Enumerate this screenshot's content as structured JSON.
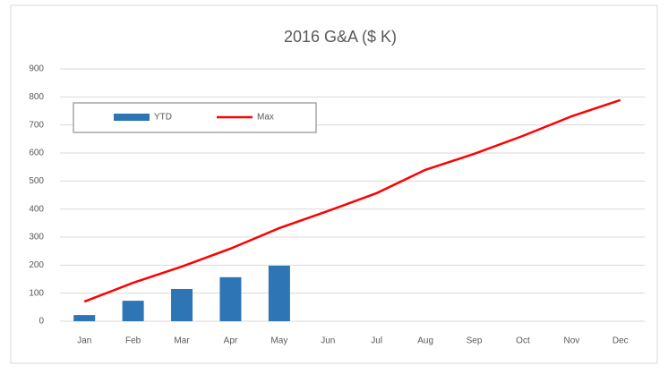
{
  "chart_data": {
    "type": "bar",
    "title": "2016 G&A ($ K)",
    "categories": [
      "Jan",
      "Feb",
      "Mar",
      "Apr",
      "May",
      "Jun",
      "Jul",
      "Aug",
      "Sep",
      "Oct",
      "Nov",
      "Dec"
    ],
    "series": [
      {
        "name": "YTD",
        "type": "bar",
        "color": "#2e75b6",
        "values": [
          22,
          73,
          115,
          157,
          198,
          null,
          null,
          null,
          null,
          null,
          null,
          null
        ]
      },
      {
        "name": "Max",
        "type": "line",
        "color": "#ff0000",
        "values": [
          70,
          137,
          195,
          259,
          332,
          393,
          457,
          540,
          597,
          661,
          731,
          789
        ]
      }
    ],
    "ylim": [
      0,
      900
    ],
    "yticks": [
      0,
      100,
      200,
      300,
      400,
      500,
      600,
      700,
      800,
      900
    ],
    "grid": true,
    "legend": "top-left"
  }
}
